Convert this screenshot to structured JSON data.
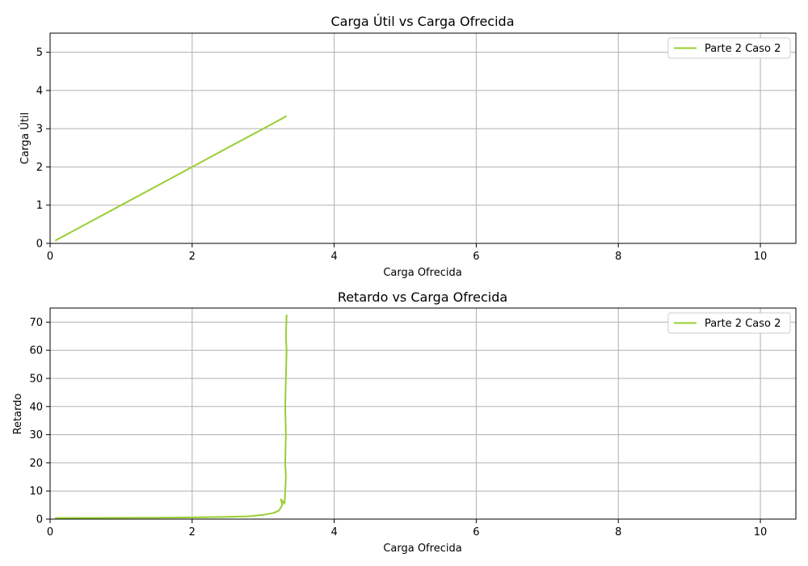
{
  "series_color": "#9acd32",
  "chart_data": [
    {
      "type": "line",
      "title": "Carga Útil vs Carga Ofrecida",
      "xlabel": "Carga Ofrecida",
      "ylabel": "Carga Útil",
      "xlim": [
        0,
        10.5
      ],
      "ylim": [
        0,
        5.5
      ],
      "xticks": [
        0,
        2,
        4,
        6,
        8,
        10
      ],
      "yticks": [
        0,
        1,
        2,
        3,
        4,
        5
      ],
      "grid": true,
      "legend_position": "top-right",
      "series": [
        {
          "name": "Parte 2 Caso 2",
          "x": [
            0.08,
            0.5,
            1.0,
            1.5,
            2.0,
            2.5,
            3.0,
            3.2,
            3.3,
            3.32
          ],
          "y": [
            0.08,
            0.5,
            1.0,
            1.5,
            2.0,
            2.5,
            3.0,
            3.2,
            3.3,
            3.33
          ]
        }
      ]
    },
    {
      "type": "line",
      "title": "Retardo vs Carga Ofrecida",
      "xlabel": "Carga Ofrecida",
      "ylabel": "Retardo",
      "xlim": [
        0,
        10.5
      ],
      "ylim": [
        0,
        75
      ],
      "xticks": [
        0,
        2,
        4,
        6,
        8,
        10
      ],
      "yticks": [
        0,
        10,
        20,
        30,
        40,
        50,
        60,
        70
      ],
      "grid": true,
      "legend_position": "top-right",
      "series": [
        {
          "name": "Parte 2 Caso 2",
          "x": [
            0.08,
            0.5,
            1.0,
            1.5,
            2.0,
            2.5,
            2.8,
            3.0,
            3.15,
            3.22,
            3.27,
            3.25,
            3.3,
            3.31,
            3.32,
            3.31,
            3.32,
            3.31,
            3.32,
            3.33,
            3.32,
            3.33
          ],
          "y": [
            0.4,
            0.42,
            0.45,
            0.5,
            0.6,
            0.8,
            1.0,
            1.5,
            2.2,
            3.0,
            5.0,
            7.0,
            5.5,
            10,
            15,
            20,
            30,
            40,
            50,
            60,
            65,
            72.5
          ]
        }
      ]
    }
  ]
}
